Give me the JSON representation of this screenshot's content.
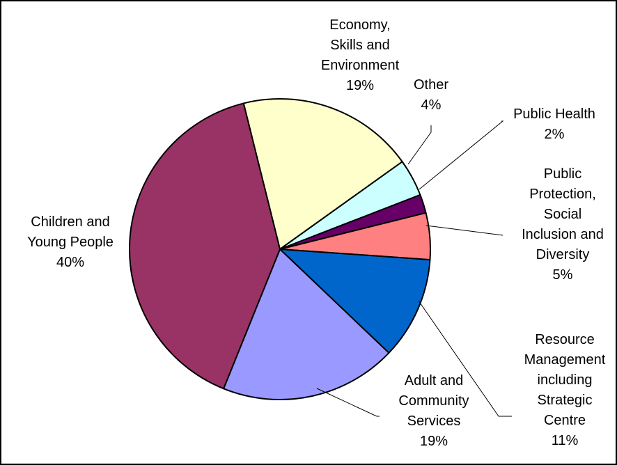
{
  "chart_data": {
    "type": "pie",
    "title": "",
    "slices": [
      {
        "label": [
          "Economy,",
          "Skills and",
          "Environment"
        ],
        "pct_label": "19%",
        "value": 19,
        "color": "#ffffcc"
      },
      {
        "label": [
          "Other"
        ],
        "pct_label": "4%",
        "value": 4,
        "color": "#ccffff"
      },
      {
        "label": [
          "Public Health"
        ],
        "pct_label": "2%",
        "value": 2,
        "color": "#660066"
      },
      {
        "label": [
          "Public",
          "Protection,",
          "Social",
          "Inclusion and",
          "Diversity"
        ],
        "pct_label": "5%",
        "value": 5,
        "color": "#ff8080"
      },
      {
        "label": [
          "Resource",
          "Management",
          "including",
          "Strategic",
          "Centre"
        ],
        "pct_label": "11%",
        "value": 11,
        "color": "#0066cc"
      },
      {
        "label": [
          "Adult and",
          "Community",
          "Services"
        ],
        "pct_label": "19%",
        "value": 19,
        "color": "#9999ff"
      },
      {
        "label": [
          "Children and",
          "Young People"
        ],
        "pct_label": "40%",
        "value": 40,
        "color": "#993366"
      }
    ]
  }
}
